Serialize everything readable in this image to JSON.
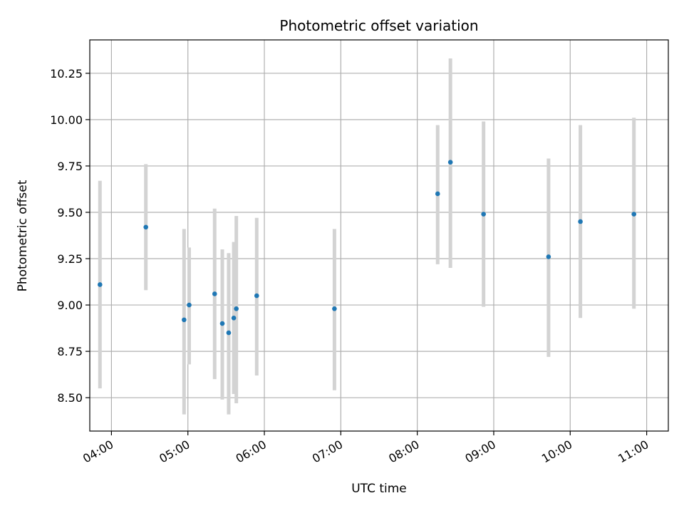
{
  "chart_data": {
    "type": "scatter",
    "title": "Photometric offset variation",
    "xlabel": "UTC time",
    "ylabel": "Photometric offset",
    "x_tick_labels": [
      "04:00",
      "05:00",
      "06:00",
      "07:00",
      "08:00",
      "09:00",
      "10:00",
      "11:00"
    ],
    "y_tick_labels": [
      "8.50",
      "8.75",
      "9.00",
      "9.25",
      "9.50",
      "9.75",
      "10.00",
      "10.25"
    ],
    "xlim": [
      "03:43",
      "11:17"
    ],
    "ylim": [
      8.32,
      10.43
    ],
    "grid": true,
    "colors": {
      "point": "#1f77b4",
      "errorbar": "#d3d3d3",
      "grid": "#b0b0b0"
    },
    "points": [
      {
        "x": "03:51",
        "y": 9.11,
        "ylow": 8.55,
        "yhigh": 9.67
      },
      {
        "x": "04:27",
        "y": 9.42,
        "ylow": 9.08,
        "yhigh": 9.76
      },
      {
        "x": "04:57",
        "y": 8.92,
        "ylow": 8.41,
        "yhigh": 9.41
      },
      {
        "x": "05:01",
        "y": 9.0,
        "ylow": 8.68,
        "yhigh": 9.31
      },
      {
        "x": "05:21",
        "y": 9.06,
        "ylow": 8.6,
        "yhigh": 9.52
      },
      {
        "x": "05:27",
        "y": 8.9,
        "ylow": 8.49,
        "yhigh": 9.3
      },
      {
        "x": "05:32",
        "y": 8.85,
        "ylow": 8.41,
        "yhigh": 9.28
      },
      {
        "x": "05:36",
        "y": 8.93,
        "ylow": 8.52,
        "yhigh": 9.34
      },
      {
        "x": "05:38",
        "y": 8.98,
        "ylow": 8.47,
        "yhigh": 9.48
      },
      {
        "x": "05:54",
        "y": 9.05,
        "ylow": 8.62,
        "yhigh": 9.47
      },
      {
        "x": "06:55",
        "y": 8.98,
        "ylow": 8.54,
        "yhigh": 9.41
      },
      {
        "x": "08:16",
        "y": 9.6,
        "ylow": 9.22,
        "yhigh": 9.97
      },
      {
        "x": "08:26",
        "y": 9.77,
        "ylow": 9.2,
        "yhigh": 10.33
      },
      {
        "x": "08:52",
        "y": 9.49,
        "ylow": 8.99,
        "yhigh": 9.99
      },
      {
        "x": "09:43",
        "y": 9.26,
        "ylow": 8.72,
        "yhigh": 9.79
      },
      {
        "x": "10:08",
        "y": 9.45,
        "ylow": 8.93,
        "yhigh": 9.97
      },
      {
        "x": "10:50",
        "y": 9.49,
        "ylow": 8.98,
        "yhigh": 10.01
      }
    ]
  }
}
